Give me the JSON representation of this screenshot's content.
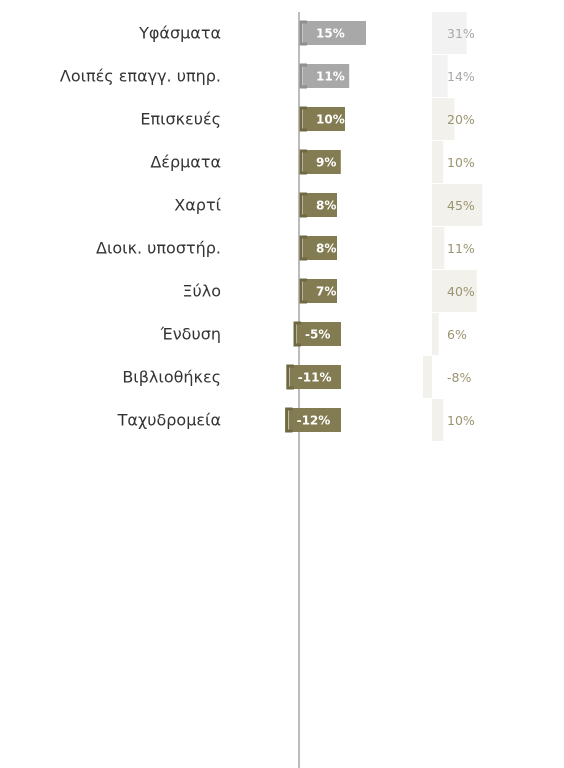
{
  "colors": {
    "main_positive": "#837c52",
    "main_gray": "#a8a8a8",
    "main_border": "#6f6942",
    "gray_border": "#8e8e8e",
    "secondary_bar": "#f2f1eb",
    "secondary_bar_gray": "#f2f2f2",
    "secondary_text": "#9a9470",
    "secondary_text_gray": "#a8a8a8",
    "axis": "#bcbcbc",
    "category_text": "#333333"
  },
  "chart_data": {
    "type": "bar",
    "orientation": "horizontal",
    "categories": [
      "Υφάσματα",
      "Λοιπές επαγγ. υπηρ.",
      "Επισκευές",
      "Δέρματα",
      "Χαρτί",
      "Διοικ. υποστήρ.",
      "Ξύλο",
      "Ένδυση",
      "Βιβλιοθήκες",
      "Ταχυδρομεία"
    ],
    "series": [
      {
        "values": [
          15,
          11,
          10,
          9,
          8,
          8,
          7,
          -5,
          -11,
          -12
        ],
        "labels": [
          "15%",
          "11%",
          "10%",
          "9%",
          "8%",
          "8%",
          "7%",
          "-5%",
          "-11%",
          "-12%"
        ],
        "highlight": [
          false,
          false,
          true,
          true,
          true,
          true,
          true,
          true,
          true,
          true
        ]
      },
      {
        "values": [
          31,
          14,
          20,
          10,
          45,
          11,
          40,
          6,
          -8,
          10
        ],
        "labels": [
          "31%",
          "14%",
          "20%",
          "10%",
          "45%",
          "11%",
          "40%",
          "6%",
          "-8%",
          "10%"
        ]
      }
    ],
    "grid": false,
    "legend": "none"
  }
}
